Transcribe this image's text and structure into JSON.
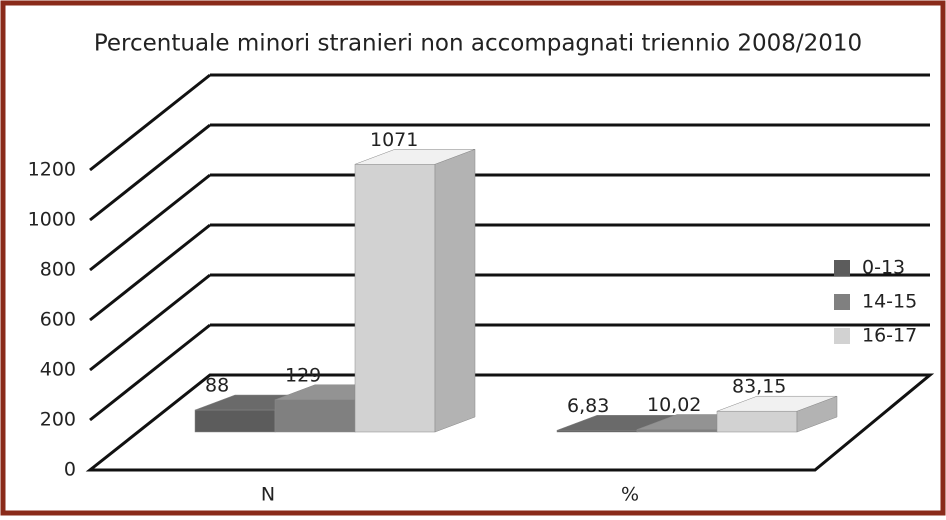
{
  "chart_data": {
    "type": "bar3d",
    "title": "Percentuale minori stranieri non accompagnati triennio 2008/2010",
    "categories": [
      "N",
      "%"
    ],
    "series": [
      {
        "name": "0-13",
        "color": "#5c5c5c",
        "values": [
          88,
          6.83
        ],
        "value_labels": [
          "88",
          "6,83"
        ]
      },
      {
        "name": "14-15",
        "color": "#808080",
        "values": [
          129,
          10.02
        ],
        "value_labels": [
          "129",
          "10,02"
        ]
      },
      {
        "name": "16-17",
        "color": "#d2d2d2",
        "values": [
          1071,
          83.15
        ],
        "value_labels": [
          "1071",
          "83,15"
        ]
      }
    ],
    "ylim": [
      0,
      1200
    ],
    "yticks": [
      0,
      200,
      400,
      600,
      800,
      1000,
      1200
    ],
    "grid": true,
    "legend": "right"
  }
}
